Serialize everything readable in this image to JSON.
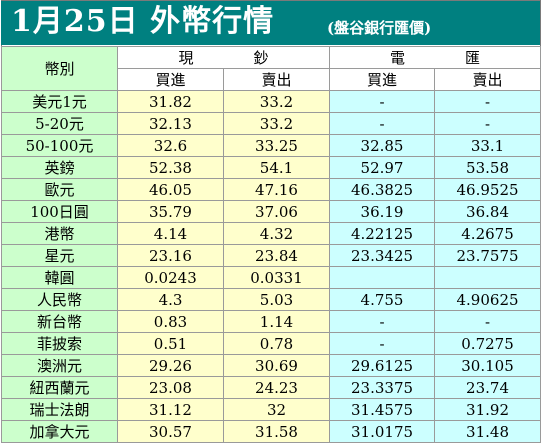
{
  "title": {
    "main": "1月25日 外幣行情",
    "sub": "(盤谷銀行匯價)"
  },
  "header": {
    "currency_label": "幣別",
    "cash": "現鈔",
    "transfer": "電匯",
    "buy": "買進",
    "sell": "賣出"
  },
  "colors": {
    "title_bg": "#008080",
    "name_col": "#ccffcc",
    "cash_cols": "#ffffcc",
    "transfer_cols": "#ccffff"
  },
  "rows": [
    {
      "name": "美元1元",
      "cash_buy": "31.82",
      "cash_sell": "33.2",
      "tt_buy": "-",
      "tt_sell": "-"
    },
    {
      "name": "5-20元",
      "cash_buy": "32.13",
      "cash_sell": "33.2",
      "tt_buy": "-",
      "tt_sell": "-"
    },
    {
      "name": "50-100元",
      "cash_buy": "32.6",
      "cash_sell": "33.25",
      "tt_buy": "32.85",
      "tt_sell": "33.1"
    },
    {
      "name": "英鎊",
      "cash_buy": "52.38",
      "cash_sell": "54.1",
      "tt_buy": "52.97",
      "tt_sell": "53.58"
    },
    {
      "name": "歐元",
      "cash_buy": "46.05",
      "cash_sell": "47.16",
      "tt_buy": "46.3825",
      "tt_sell": "46.9525"
    },
    {
      "name": "100日圓",
      "cash_buy": "35.79",
      "cash_sell": "37.06",
      "tt_buy": "36.19",
      "tt_sell": "36.84"
    },
    {
      "name": "港幣",
      "cash_buy": "4.14",
      "cash_sell": "4.32",
      "tt_buy": "4.22125",
      "tt_sell": "4.2675"
    },
    {
      "name": "星元",
      "cash_buy": "23.16",
      "cash_sell": "23.84",
      "tt_buy": "23.3425",
      "tt_sell": "23.7575"
    },
    {
      "name": "韓圓",
      "cash_buy": "0.0243",
      "cash_sell": "0.0331",
      "tt_buy": "",
      "tt_sell": ""
    },
    {
      "name": "人民幣",
      "cash_buy": "4.3",
      "cash_sell": "5.03",
      "tt_buy": "4.755",
      "tt_sell": "4.90625"
    },
    {
      "name": "新台幣",
      "cash_buy": "0.83",
      "cash_sell": "1.14",
      "tt_buy": "-",
      "tt_sell": "-"
    },
    {
      "name": "菲披索",
      "cash_buy": "0.51",
      "cash_sell": "0.78",
      "tt_buy": "-",
      "tt_sell": "0.7275"
    },
    {
      "name": "澳洲元",
      "cash_buy": "29.26",
      "cash_sell": "30.69",
      "tt_buy": "29.6125",
      "tt_sell": "30.105"
    },
    {
      "name": "紐西蘭元",
      "cash_buy": "23.08",
      "cash_sell": "24.23",
      "tt_buy": "23.3375",
      "tt_sell": "23.74"
    },
    {
      "name": "瑞士法朗",
      "cash_buy": "31.12",
      "cash_sell": "32",
      "tt_buy": "31.4575",
      "tt_sell": "31.92"
    },
    {
      "name": "加拿大元",
      "cash_buy": "30.57",
      "cash_sell": "31.58",
      "tt_buy": "31.0175",
      "tt_sell": "31.48"
    }
  ]
}
